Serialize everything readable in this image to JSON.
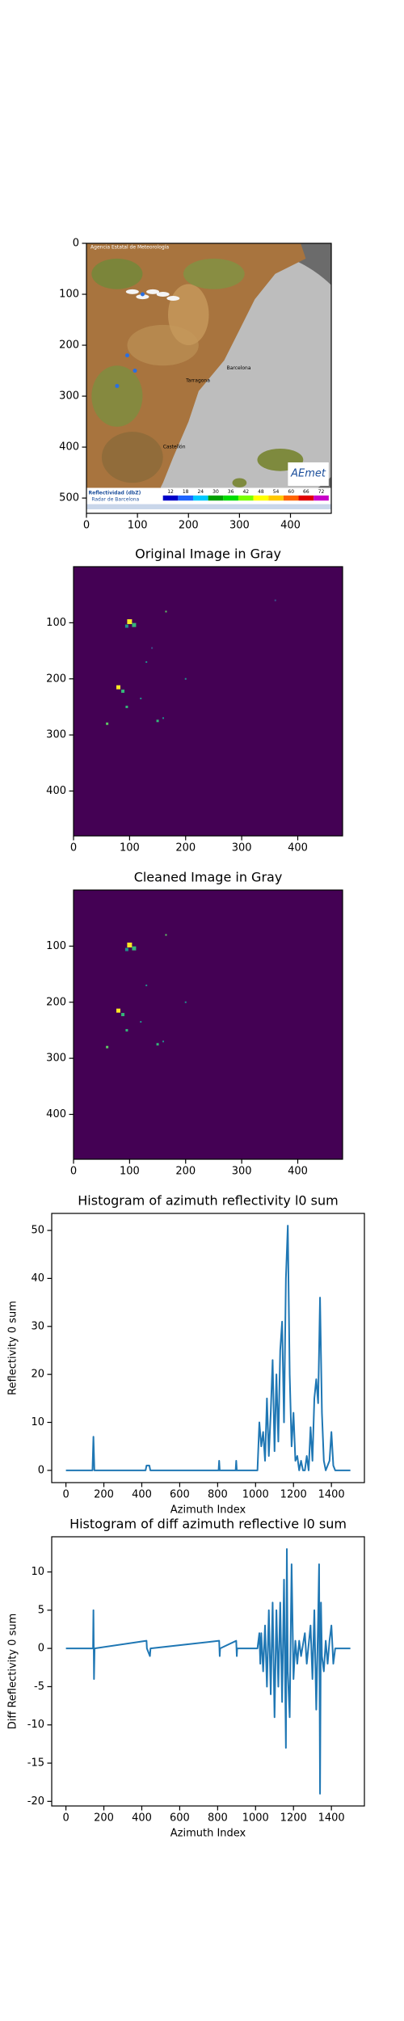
{
  "chart_data": [
    {
      "type": "image",
      "xlim": [
        0,
        480
      ],
      "ylim": [
        530,
        0
      ],
      "xticks": [
        0,
        100,
        200,
        300,
        400
      ],
      "yticks": [
        0,
        100,
        200,
        300,
        400,
        500
      ],
      "image_labels": {
        "header": "Agencia Estatal de Meteorología",
        "legend_title": "Reflectividad (dbZ)",
        "legend_subtitle": "Radar de Barcelona",
        "logo": "AEmet",
        "cities": [
          "Barcelona",
          "Tarragona",
          "Castellón"
        ]
      },
      "colorbar_labels": [
        12,
        18,
        24,
        30,
        36,
        42,
        48,
        54,
        60,
        66,
        72
      ]
    },
    {
      "type": "image",
      "title": "Original Image in Gray",
      "xlim": [
        0,
        480
      ],
      "ylim": [
        480,
        0
      ],
      "xticks": [
        0,
        100,
        200,
        300,
        400
      ],
      "yticks": [
        100,
        200,
        300,
        400
      ]
    },
    {
      "type": "image",
      "title": "Cleaned Image in Gray",
      "xlim": [
        0,
        480
      ],
      "ylim": [
        480,
        0
      ],
      "xticks": [
        0,
        100,
        200,
        300,
        400
      ],
      "yticks": [
        100,
        200,
        300,
        400
      ]
    },
    {
      "type": "line",
      "title": "Histogram of azimuth reflectivity l0 sum",
      "x_label": "Azimuth Index",
      "y_label": "Reflectivity 0 sum",
      "xlim": [
        -75,
        1574
      ],
      "ylim": [
        -2.55,
        53.55
      ],
      "xticks": [
        0,
        200,
        400,
        600,
        800,
        1000,
        1200,
        1400
      ],
      "yticks": [
        0,
        10,
        20,
        30,
        40,
        50
      ],
      "color": "#1f77b4",
      "x": [
        0,
        140,
        145,
        150,
        420,
        425,
        440,
        445,
        805,
        808,
        811,
        895,
        898,
        901,
        1010,
        1020,
        1030,
        1040,
        1050,
        1060,
        1070,
        1080,
        1090,
        1100,
        1110,
        1120,
        1130,
        1140,
        1150,
        1160,
        1170,
        1180,
        1190,
        1200,
        1210,
        1220,
        1230,
        1240,
        1250,
        1260,
        1270,
        1280,
        1290,
        1300,
        1310,
        1320,
        1330,
        1340,
        1350,
        1360,
        1370,
        1380,
        1390,
        1400,
        1410,
        1420,
        1500
      ],
      "values": [
        0,
        0,
        7,
        0,
        0,
        1,
        1,
        0,
        0,
        2,
        0,
        0,
        2,
        0,
        0,
        10,
        5,
        8,
        2,
        15,
        3,
        12,
        23,
        4,
        20,
        6,
        25,
        31,
        10,
        40,
        51,
        20,
        5,
        12,
        2,
        3,
        0,
        2,
        0,
        0,
        3,
        0,
        9,
        2,
        15,
        19,
        14,
        36,
        12,
        2,
        0,
        1,
        2,
        8,
        1,
        0,
        0
      ]
    },
    {
      "type": "line",
      "title": "Histogram of diff azimuth reflective l0 sum",
      "x_label": "Azimuth Index",
      "y_label": "Diff Reflectivity 0 sum",
      "xlim": [
        -75,
        1574
      ],
      "ylim": [
        -20.6,
        14.6
      ],
      "xticks": [
        0,
        200,
        400,
        600,
        800,
        1000,
        1200,
        1400
      ],
      "yticks": [
        -20,
        -15,
        -10,
        -5,
        0,
        5,
        10
      ],
      "color": "#1f77b4",
      "x": [
        0,
        143,
        145,
        148,
        151,
        425,
        427,
        443,
        446,
        808,
        811,
        813,
        898,
        901,
        903,
        1010,
        1020,
        1025,
        1030,
        1040,
        1050,
        1060,
        1070,
        1080,
        1090,
        1100,
        1110,
        1120,
        1130,
        1140,
        1150,
        1160,
        1165,
        1170,
        1180,
        1190,
        1200,
        1210,
        1220,
        1230,
        1240,
        1260,
        1270,
        1290,
        1300,
        1310,
        1320,
        1330,
        1335,
        1340,
        1345,
        1350,
        1360,
        1370,
        1380,
        1390,
        1400,
        1410,
        1420,
        1500
      ],
      "values": [
        0,
        0,
        5,
        -4,
        0,
        1,
        0,
        -1,
        0,
        1,
        -1,
        0,
        1,
        -1,
        0,
        0,
        2,
        -2,
        2,
        -3,
        3,
        -5,
        5,
        -6,
        6,
        -9,
        5,
        -5,
        6,
        -7,
        9,
        -13,
        13,
        -3,
        -9,
        11,
        -4,
        1,
        -2,
        1,
        -1,
        2,
        -2,
        3,
        -4,
        5,
        -8,
        4,
        11,
        -19,
        6,
        -1,
        -3,
        1,
        -2,
        1,
        3,
        -2,
        0,
        0
      ]
    }
  ]
}
